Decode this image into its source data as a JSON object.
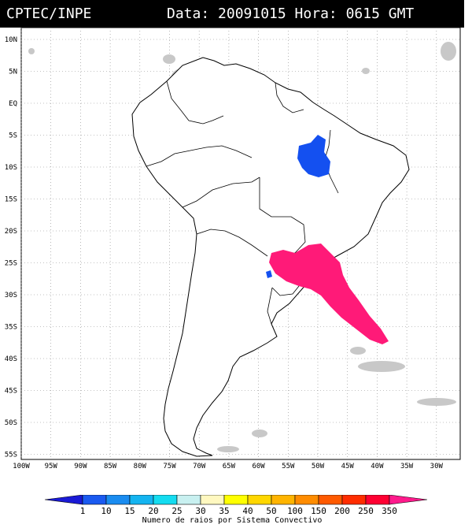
{
  "header": {
    "source": "CPTEC/INPE",
    "datetime": "Data: 20091015 Hora: 0615 GMT"
  },
  "axes": {
    "lat_labels": [
      "10N",
      "5N",
      "EQ",
      "5S",
      "10S",
      "15S",
      "20S",
      "25S",
      "30S",
      "35S",
      "40S",
      "45S",
      "50S",
      "55S"
    ],
    "lon_labels": [
      "100W",
      "95W",
      "90W",
      "85W",
      "80W",
      "75W",
      "70W",
      "65W",
      "60W",
      "55W",
      "50W",
      "45W",
      "40W",
      "35W",
      "30W"
    ]
  },
  "legend": {
    "values": [
      "1",
      "10",
      "15",
      "20",
      "25",
      "30",
      "35",
      "40",
      "50",
      "100",
      "150",
      "200",
      "250",
      "350"
    ],
    "colors": [
      "#1a1ad6",
      "#1a5af0",
      "#1a8cf0",
      "#14b4f0",
      "#14dcf0",
      "#c8f0f0",
      "#fff8c0",
      "#ffff00",
      "#ffd700",
      "#ffb400",
      "#ff8c00",
      "#ff5a00",
      "#ff2d00",
      "#ff0032",
      "#ff1a8c"
    ],
    "caption": "Numero de raios por Sistema Convectivo"
  },
  "systems": [
    {
      "name": "blue-system-central-brazil",
      "color": "#1450f0"
    },
    {
      "name": "magenta-system-southern-brazil",
      "color": "#ff1a78"
    },
    {
      "name": "small-blue-cell-paraguay",
      "color": "#1450f0"
    }
  ]
}
